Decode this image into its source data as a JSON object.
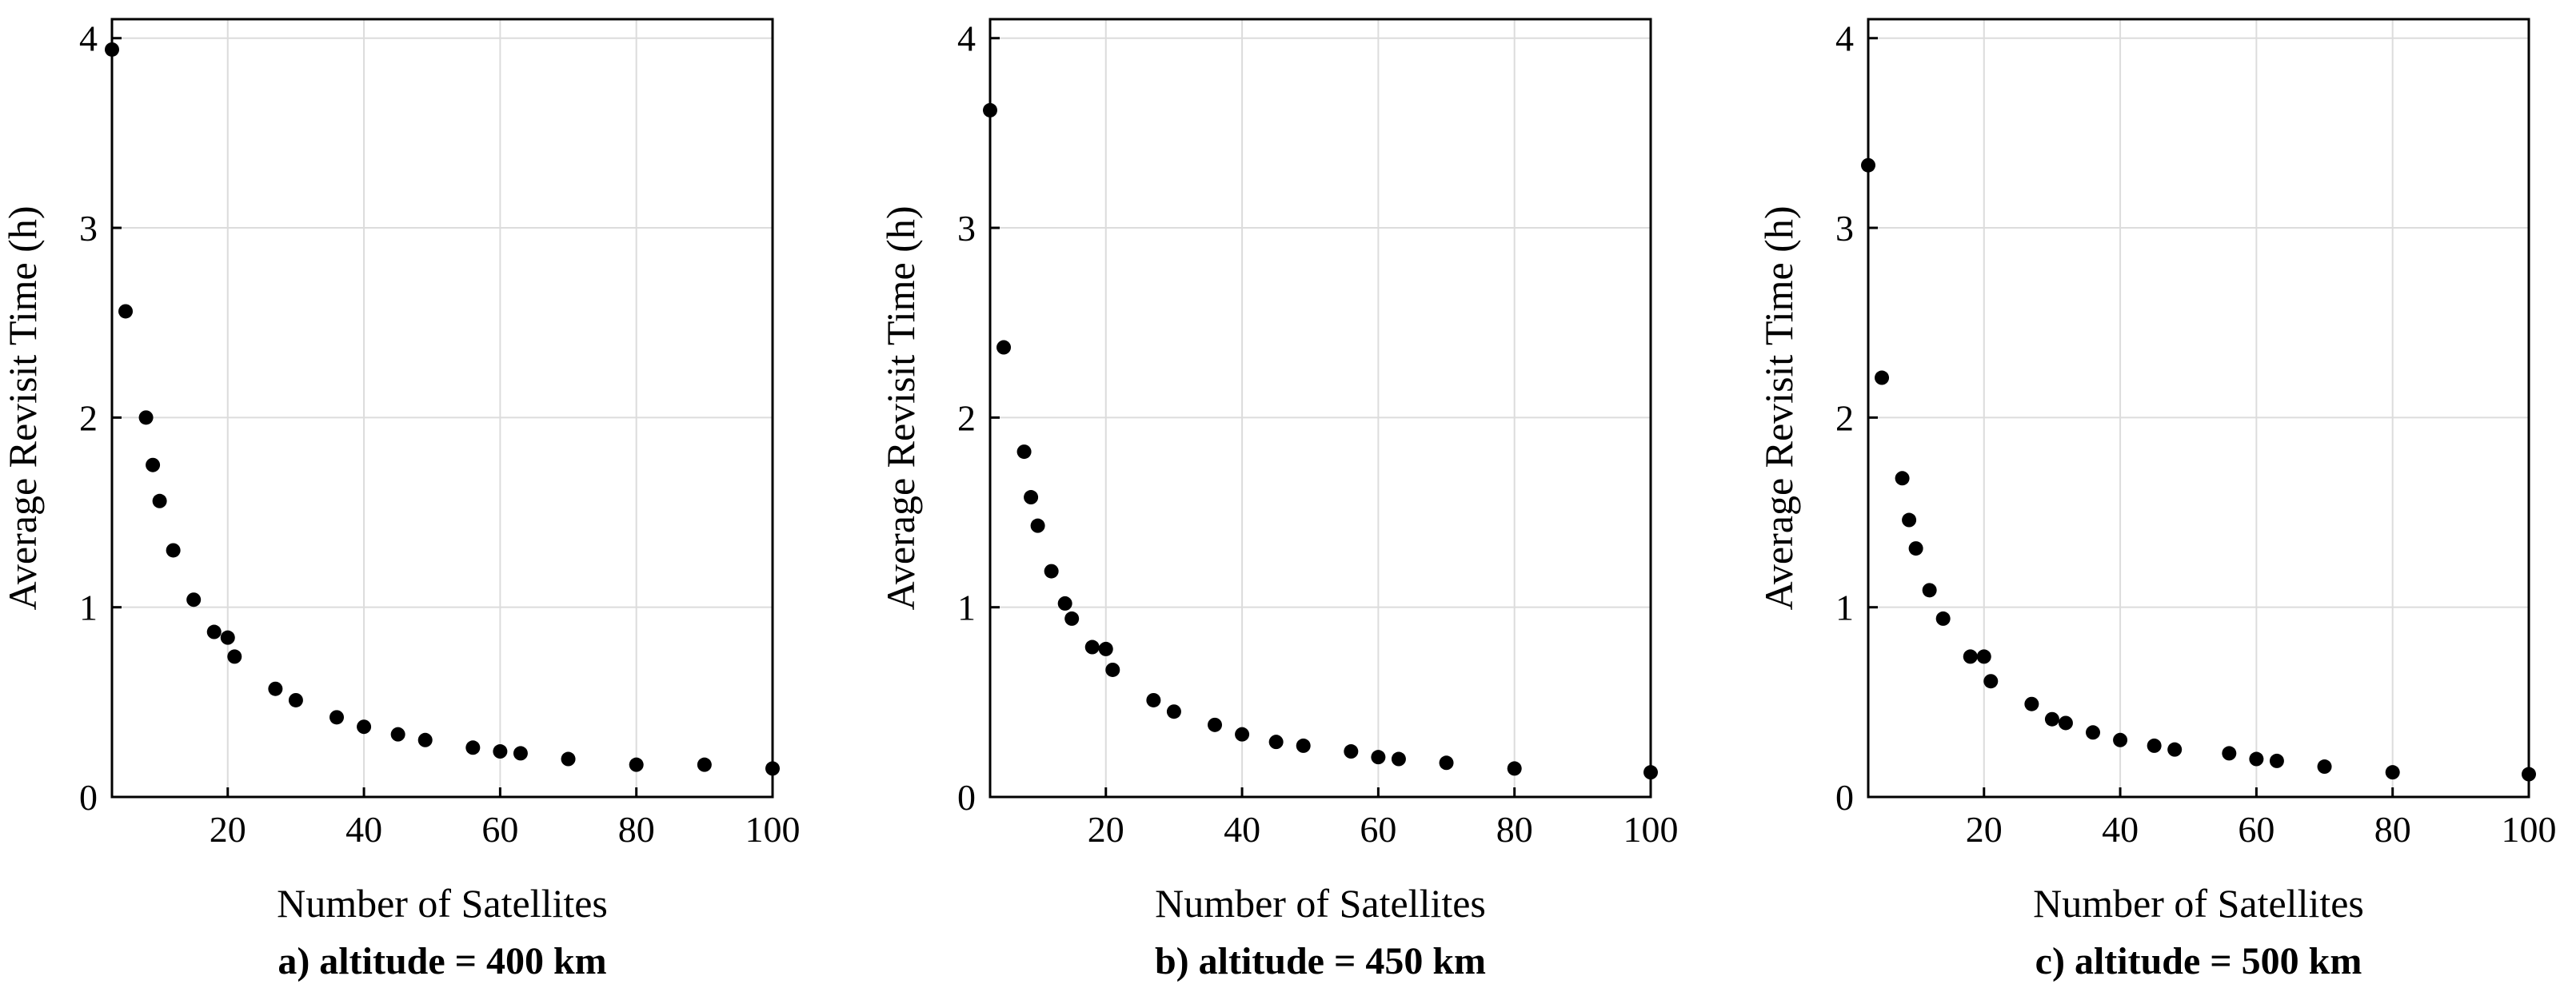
{
  "chart_data": [
    {
      "type": "scatter",
      "caption": "a) altitude = 400 km",
      "xlabel": "Number of Satellites",
      "ylabel": "Average Revisit Time (h)",
      "xlim": [
        3,
        100
      ],
      "ylim": [
        0,
        4.1
      ],
      "xticks": [
        20,
        40,
        60,
        80,
        100
      ],
      "yticks": [
        0,
        1,
        2,
        3,
        4
      ],
      "grid": true,
      "x": [
        3,
        5,
        8,
        9,
        10,
        12,
        15,
        18,
        20,
        21,
        27,
        30,
        36,
        40,
        45,
        49,
        56,
        60,
        63,
        70,
        80,
        90,
        100
      ],
      "y": [
        3.94,
        2.56,
        2.0,
        1.75,
        1.56,
        1.3,
        1.04,
        0.87,
        0.84,
        0.74,
        0.57,
        0.51,
        0.42,
        0.37,
        0.33,
        0.3,
        0.26,
        0.24,
        0.23,
        0.2,
        0.17,
        0.17,
        0.15
      ]
    },
    {
      "type": "scatter",
      "caption": "b) altitude = 450 km",
      "xlabel": "Number of Satellites",
      "ylabel": "Average Revisit Time (h)",
      "xlim": [
        3,
        100
      ],
      "ylim": [
        0,
        4.1
      ],
      "xticks": [
        20,
        40,
        60,
        80,
        100
      ],
      "yticks": [
        0,
        1,
        2,
        3,
        4
      ],
      "grid": true,
      "x": [
        3,
        5,
        8,
        9,
        10,
        12,
        14,
        15,
        18,
        20,
        21,
        27,
        30,
        36,
        40,
        45,
        49,
        56,
        60,
        63,
        70,
        80,
        100
      ],
      "y": [
        3.62,
        2.37,
        1.82,
        1.58,
        1.43,
        1.19,
        1.02,
        0.94,
        0.79,
        0.78,
        0.67,
        0.51,
        0.45,
        0.38,
        0.33,
        0.29,
        0.27,
        0.24,
        0.21,
        0.2,
        0.18,
        0.15,
        0.13
      ]
    },
    {
      "type": "scatter",
      "caption": "c) altitude = 500 km",
      "xlabel": "Number of Satellites",
      "ylabel": "Average Revisit Time (h)",
      "xlim": [
        3,
        100
      ],
      "ylim": [
        0,
        4.1
      ],
      "xticks": [
        20,
        40,
        60,
        80,
        100
      ],
      "yticks": [
        0,
        1,
        2,
        3,
        4
      ],
      "grid": true,
      "x": [
        3,
        5,
        8,
        9,
        10,
        12,
        14,
        18,
        20,
        21,
        27,
        30,
        32,
        36,
        40,
        45,
        48,
        56,
        60,
        63,
        70,
        80,
        100
      ],
      "y": [
        3.33,
        2.21,
        1.68,
        1.46,
        1.31,
        1.09,
        0.94,
        0.74,
        0.74,
        0.61,
        0.49,
        0.41,
        0.39,
        0.34,
        0.3,
        0.27,
        0.25,
        0.23,
        0.2,
        0.19,
        0.16,
        0.13,
        0.12
      ]
    }
  ]
}
